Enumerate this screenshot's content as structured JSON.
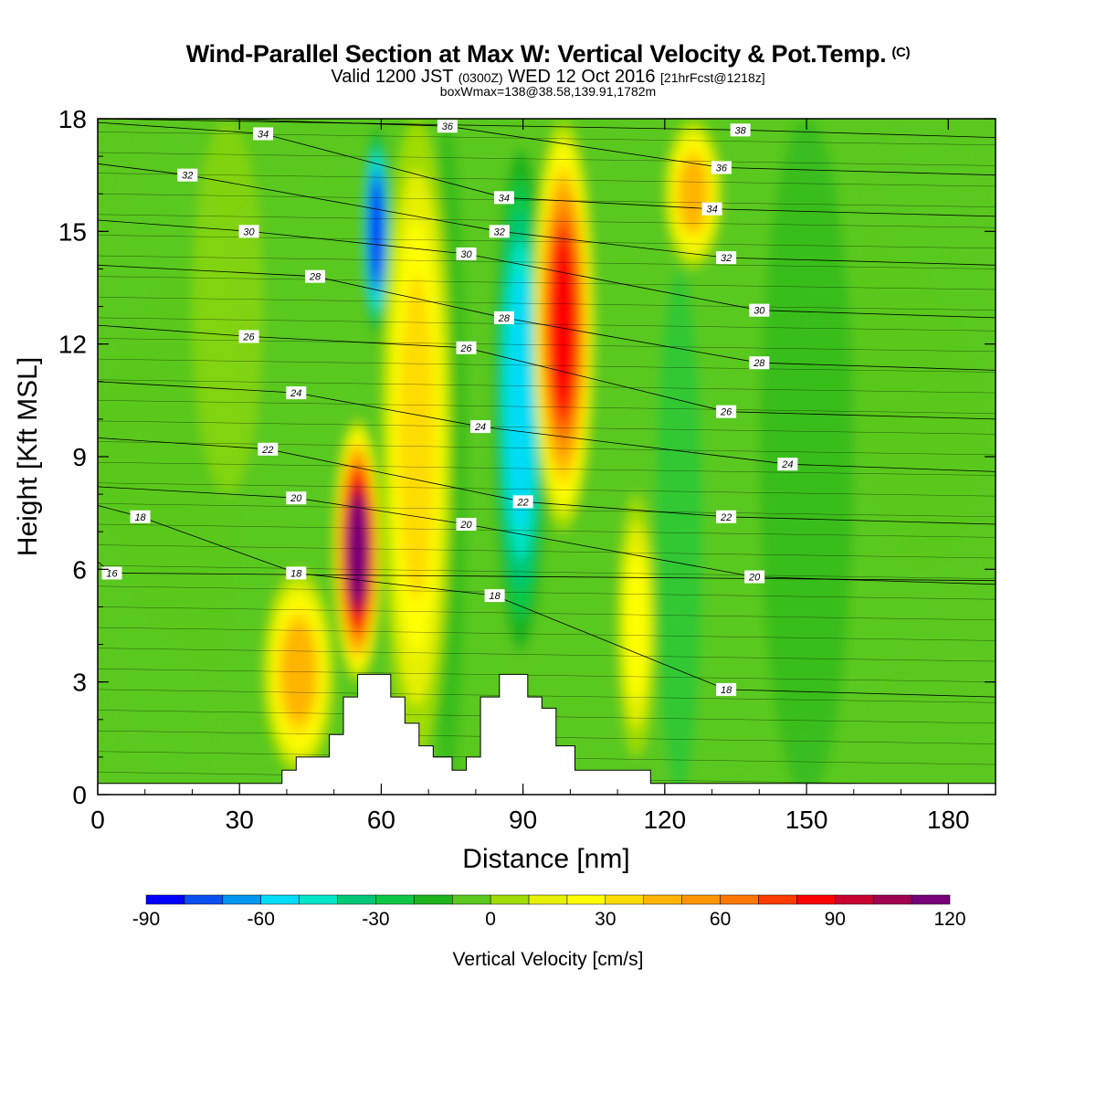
{
  "title": {
    "main": "Wind-Parallel Section at Max W: Vertical Velocity & Pot.Temp.",
    "copyright": "(C)",
    "valid_prefix": "Valid 1200 JST",
    "valid_utc": "(0300Z)",
    "valid_date": "WED 12 Oct 2016",
    "forecast": "[21hrFcst@1218z]",
    "box": "boxWmax=138@38.58,139.91,1782m"
  },
  "chart_data": {
    "type": "heatmap",
    "xlabel": "Distance [nm]",
    "ylabel": "Height [Kft MSL]",
    "xlim": [
      0,
      190
    ],
    "ylim": [
      0,
      18
    ],
    "x_ticks": [
      0,
      30,
      60,
      90,
      120,
      150,
      180
    ],
    "y_ticks": [
      0,
      3,
      6,
      9,
      12,
      15,
      18
    ],
    "colorbar": {
      "label": "Vertical Velocity [cm/s]",
      "levels": [
        -90,
        -80,
        -70,
        -60,
        -50,
        -40,
        -30,
        -20,
        -10,
        0,
        10,
        20,
        30,
        40,
        50,
        60,
        70,
        80,
        90,
        100,
        110,
        120
      ],
      "tick_labels": [
        -90,
        -60,
        -30,
        0,
        30,
        60,
        90,
        120
      ],
      "colors": [
        "#0000ff",
        "#0a50f0",
        "#0096f0",
        "#00dcf5",
        "#00e6c8",
        "#00c878",
        "#0cc846",
        "#1eb41e",
        "#5ac81e",
        "#a0dc00",
        "#e6f000",
        "#ffff00",
        "#ffdc00",
        "#ffb400",
        "#ff9600",
        "#ff7800",
        "#ff3c00",
        "#ff0000",
        "#c80032",
        "#a00050",
        "#780078"
      ]
    },
    "vertical_velocity_features": [
      {
        "kind": "updraft",
        "x_range": [
          50,
          60
        ],
        "z_range": [
          3,
          10
        ],
        "peak_cm_s": 120
      },
      {
        "kind": "updraft",
        "x_range": [
          35,
          50
        ],
        "z_range": [
          0.5,
          6
        ],
        "peak_cm_s": 50
      },
      {
        "kind": "downdraft",
        "x_range": [
          56,
          62
        ],
        "z_range": [
          12,
          18
        ],
        "peak_cm_s": -90
      },
      {
        "kind": "updraft",
        "x_range": [
          60,
          75
        ],
        "z_range": [
          1,
          18
        ],
        "peak_cm_s": 40
      },
      {
        "kind": "downdraft",
        "x_range": [
          83,
          96
        ],
        "z_range": [
          3,
          18
        ],
        "peak_cm_s": -60
      },
      {
        "kind": "updraft",
        "x_range": [
          92,
          105
        ],
        "z_range": [
          7,
          18
        ],
        "peak_cm_s": 90
      },
      {
        "kind": "updraft",
        "x_range": [
          110,
          118
        ],
        "z_range": [
          1,
          8
        ],
        "peak_cm_s": 30
      },
      {
        "kind": "updraft",
        "x_range": [
          120,
          132
        ],
        "z_range": [
          14,
          18
        ],
        "peak_cm_s": 50
      }
    ],
    "potential_temperature_contours": [
      {
        "value": "16",
        "label_at": [
          3,
          5.9
        ]
      },
      {
        "value": "18",
        "label_at": [
          9,
          7.4
        ]
      },
      {
        "value": "18",
        "label_at": [
          42,
          5.9
        ]
      },
      {
        "value": "18",
        "label_at": [
          84,
          5.3
        ]
      },
      {
        "value": "18",
        "label_at": [
          133,
          2.8
        ]
      },
      {
        "value": "20",
        "label_at": [
          42,
          7.9
        ]
      },
      {
        "value": "20",
        "label_at": [
          78,
          7.2
        ]
      },
      {
        "value": "20",
        "label_at": [
          139,
          5.8
        ]
      },
      {
        "value": "22",
        "label_at": [
          36,
          9.2
        ]
      },
      {
        "value": "22",
        "label_at": [
          90,
          7.8
        ]
      },
      {
        "value": "22",
        "label_at": [
          133,
          7.4
        ]
      },
      {
        "value": "24",
        "label_at": [
          42,
          10.7
        ]
      },
      {
        "value": "24",
        "label_at": [
          81,
          9.8
        ]
      },
      {
        "value": "24",
        "label_at": [
          146,
          8.8
        ]
      },
      {
        "value": "26",
        "label_at": [
          32,
          12.2
        ]
      },
      {
        "value": "26",
        "label_at": [
          78,
          11.9
        ]
      },
      {
        "value": "26",
        "label_at": [
          133,
          10.2
        ]
      },
      {
        "value": "28",
        "label_at": [
          46,
          13.8
        ]
      },
      {
        "value": "28",
        "label_at": [
          86,
          12.7
        ]
      },
      {
        "value": "28",
        "label_at": [
          140,
          11.5
        ]
      },
      {
        "value": "30",
        "label_at": [
          32,
          15.0
        ]
      },
      {
        "value": "30",
        "label_at": [
          78,
          14.4
        ]
      },
      {
        "value": "30",
        "label_at": [
          140,
          12.9
        ]
      },
      {
        "value": "32",
        "label_at": [
          19,
          16.5
        ]
      },
      {
        "value": "32",
        "label_at": [
          85,
          15.0
        ]
      },
      {
        "value": "32",
        "label_at": [
          133,
          14.3
        ]
      },
      {
        "value": "34",
        "label_at": [
          35,
          17.6
        ]
      },
      {
        "value": "34",
        "label_at": [
          86,
          15.9
        ]
      },
      {
        "value": "34",
        "label_at": [
          130,
          15.6
        ]
      },
      {
        "value": "36",
        "label_at": [
          74,
          17.8
        ]
      },
      {
        "value": "36",
        "label_at": [
          132,
          16.7
        ]
      },
      {
        "value": "38",
        "label_at": [
          136,
          17.7
        ]
      }
    ],
    "terrain_height_kft": [
      {
        "x": 0,
        "z": 0.3
      },
      {
        "x": 39,
        "z": 0.3
      },
      {
        "x": 39,
        "z": 0.65
      },
      {
        "x": 42,
        "z": 0.65
      },
      {
        "x": 42,
        "z": 1.0
      },
      {
        "x": 49,
        "z": 1.0
      },
      {
        "x": 49,
        "z": 1.6
      },
      {
        "x": 52,
        "z": 1.6
      },
      {
        "x": 52,
        "z": 2.6
      },
      {
        "x": 55,
        "z": 2.6
      },
      {
        "x": 55,
        "z": 3.2
      },
      {
        "x": 62,
        "z": 3.2
      },
      {
        "x": 62,
        "z": 2.6
      },
      {
        "x": 65,
        "z": 2.6
      },
      {
        "x": 65,
        "z": 1.9
      },
      {
        "x": 68,
        "z": 1.9
      },
      {
        "x": 68,
        "z": 1.3
      },
      {
        "x": 71,
        "z": 1.3
      },
      {
        "x": 71,
        "z": 1.0
      },
      {
        "x": 75,
        "z": 1.0
      },
      {
        "x": 75,
        "z": 0.65
      },
      {
        "x": 78,
        "z": 0.65
      },
      {
        "x": 78,
        "z": 1.0
      },
      {
        "x": 81,
        "z": 1.0
      },
      {
        "x": 81,
        "z": 2.6
      },
      {
        "x": 85,
        "z": 2.6
      },
      {
        "x": 85,
        "z": 3.2
      },
      {
        "x": 91,
        "z": 3.2
      },
      {
        "x": 91,
        "z": 2.6
      },
      {
        "x": 94,
        "z": 2.6
      },
      {
        "x": 94,
        "z": 2.3
      },
      {
        "x": 97,
        "z": 2.3
      },
      {
        "x": 97,
        "z": 1.3
      },
      {
        "x": 101,
        "z": 1.3
      },
      {
        "x": 101,
        "z": 0.65
      },
      {
        "x": 117,
        "z": 0.65
      },
      {
        "x": 117,
        "z": 0.3
      },
      {
        "x": 190,
        "z": 0.3
      }
    ]
  }
}
